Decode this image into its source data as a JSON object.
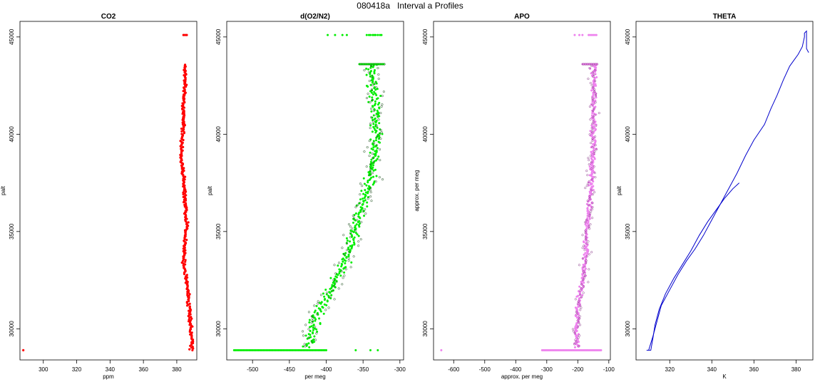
{
  "title": "080418a   Interval a Profiles",
  "colors": {
    "co2": "#ff0000",
    "o2n2_fill": "#00ee00",
    "o2n2_outline": "#1a4d1a",
    "apo_fill": "#ee82ee",
    "apo_outline": "#8b3a8b",
    "theta": "#0000cc"
  },
  "chart_data": [
    {
      "id": "co2",
      "type": "scatter",
      "title": "CO2",
      "xlabel": "ppm",
      "ylabel": "palt",
      "xlim": [
        286,
        392
      ],
      "ylim": [
        28400,
        45800
      ],
      "xticks": [
        300,
        320,
        340,
        360,
        380
      ],
      "yticks": [
        30000,
        35000,
        40000,
        45000
      ],
      "profile": [
        [
          389,
          28900
        ],
        [
          389,
          29500
        ],
        [
          388,
          30500
        ],
        [
          387,
          31500
        ],
        [
          386,
          32500
        ],
        [
          384,
          33500
        ],
        [
          385,
          34500
        ],
        [
          386,
          35500
        ],
        [
          385,
          36500
        ],
        [
          384,
          37500
        ],
        [
          383,
          38500
        ],
        [
          383,
          39500
        ],
        [
          384,
          40500
        ],
        [
          384,
          41500
        ],
        [
          385,
          42500
        ],
        [
          385,
          43600
        ]
      ],
      "jitter": 1.5,
      "extra_points": [
        [
          385,
          45100
        ],
        [
          386,
          45100
        ],
        [
          384,
          45100
        ],
        [
          288,
          28900
        ]
      ]
    },
    {
      "id": "o2n2",
      "type": "scatter",
      "title": "d(O2/N2)",
      "xlabel": "per meg",
      "ylabel": "palt",
      "xlim": [
        -535,
        -295
      ],
      "ylim": [
        28400,
        45800
      ],
      "xticks": [
        -500,
        -450,
        -400,
        -350,
        -300
      ],
      "yticks": [
        30000,
        35000,
        40000,
        45000
      ],
      "profile": [
        [
          -425,
          28900
        ],
        [
          -420,
          30000
        ],
        [
          -410,
          31000
        ],
        [
          -395,
          32000
        ],
        [
          -380,
          33000
        ],
        [
          -368,
          34000
        ],
        [
          -362,
          35000
        ],
        [
          -355,
          36000
        ],
        [
          -345,
          37000
        ],
        [
          -338,
          38000
        ],
        [
          -335,
          39000
        ],
        [
          -333,
          40000
        ],
        [
          -332,
          41000
        ],
        [
          -335,
          42000
        ],
        [
          -337,
          43000
        ],
        [
          -340,
          43600
        ]
      ],
      "jitter": 22,
      "baseline_row": {
        "y": 28900,
        "x_min": -525,
        "x_max": -400,
        "extra": [
          -360,
          -340,
          -330
        ]
      },
      "top_row": {
        "y": 45100,
        "points": [
          -398,
          -388,
          -378,
          -372,
          -345,
          -342,
          -340,
          -337,
          -335,
          -333,
          -330,
          -327,
          -325
        ]
      },
      "band_43600": {
        "y": 43600,
        "x_min": -355,
        "x_max": -322
      }
    },
    {
      "id": "apo",
      "type": "scatter",
      "title": "APO",
      "xlabel": "approx. per meg",
      "ylabel": "approx. per meg",
      "xlim": [
        -665,
        -95
      ],
      "ylim": [
        28400,
        45800
      ],
      "xticks": [
        -600,
        -500,
        -400,
        -300,
        -200,
        -100
      ],
      "yticks": [
        30000,
        35000,
        40000,
        45000
      ],
      "profile": [
        [
          -200,
          28900
        ],
        [
          -205,
          30000
        ],
        [
          -200,
          31000
        ],
        [
          -190,
          32000
        ],
        [
          -180,
          33000
        ],
        [
          -175,
          34000
        ],
        [
          -170,
          35000
        ],
        [
          -165,
          36000
        ],
        [
          -160,
          37000
        ],
        [
          -155,
          38000
        ],
        [
          -150,
          39000
        ],
        [
          -150,
          40000
        ],
        [
          -150,
          41000
        ],
        [
          -148,
          42000
        ],
        [
          -148,
          43000
        ],
        [
          -150,
          43600
        ]
      ],
      "jitter": 25,
      "baseline_row": {
        "y": 28900,
        "x_min": -315,
        "x_max": -125,
        "extra": [
          -640
        ]
      },
      "top_row": {
        "y": 45100,
        "points": [
          -210,
          -195,
          -185,
          -165,
          -160,
          -155,
          -150,
          -145,
          -140
        ]
      },
      "band_43600": {
        "y": 43600,
        "x_min": -185,
        "x_max": -135
      }
    },
    {
      "id": "theta",
      "type": "line",
      "title": "THETA",
      "xlabel": "K",
      "ylabel": "palt",
      "xlim": [
        304,
        388
      ],
      "ylim": [
        28400,
        45800
      ],
      "xticks": [
        320,
        340,
        360,
        380
      ],
      "yticks": [
        30000,
        35000,
        40000,
        45000
      ],
      "ascent": [
        [
          309,
          28900
        ],
        [
          311,
          28900
        ],
        [
          312,
          29500
        ],
        [
          313,
          30200
        ],
        [
          315,
          31000
        ],
        [
          318,
          31800
        ],
        [
          322,
          32600
        ],
        [
          326,
          33300
        ],
        [
          330,
          34000
        ],
        [
          334,
          34800
        ],
        [
          338,
          35500
        ],
        [
          342,
          36100
        ],
        [
          346,
          36700
        ],
        [
          350,
          37200
        ],
        [
          353,
          37500
        ]
      ],
      "descent": [
        [
          310,
          28900
        ],
        [
          312,
          29600
        ],
        [
          314,
          30400
        ],
        [
          316,
          31200
        ],
        [
          320,
          32000
        ],
        [
          324,
          32800
        ],
        [
          328,
          33500
        ],
        [
          332,
          34100
        ],
        [
          336,
          34800
        ],
        [
          340,
          35600
        ],
        [
          344,
          36400
        ],
        [
          348,
          37200
        ],
        [
          352,
          38000
        ],
        [
          356,
          38900
        ],
        [
          360,
          39700
        ],
        [
          365,
          40500
        ],
        [
          368,
          41300
        ],
        [
          371,
          42000
        ],
        [
          374,
          42800
        ],
        [
          377,
          43500
        ],
        [
          379,
          43800
        ],
        [
          381,
          44100
        ],
        [
          383,
          44500
        ],
        [
          384,
          45000
        ],
        [
          384,
          45200
        ],
        [
          385,
          45300
        ],
        [
          385,
          44400
        ],
        [
          386,
          44200
        ]
      ]
    }
  ]
}
